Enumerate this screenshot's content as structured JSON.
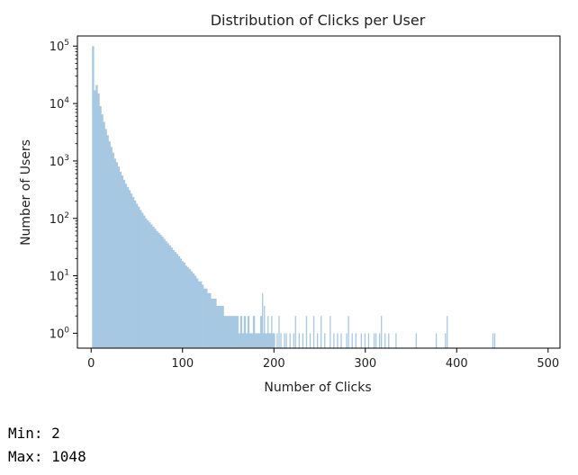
{
  "chart_data": {
    "type": "bar",
    "title": "Distribution of Clicks per User",
    "xlabel": "Number of Clicks",
    "ylabel": "Number of Users",
    "xlim": [
      -15,
      513
    ],
    "ylim": [
      0.55,
      150000
    ],
    "yscale": "log",
    "xticks": [
      0,
      100,
      200,
      300,
      400,
      500
    ],
    "xtick_labels": [
      "0",
      "100",
      "200",
      "300",
      "400",
      "500"
    ],
    "yticks": [
      1,
      10,
      100,
      1000,
      10000,
      100000
    ],
    "ytick_bases": [
      "10",
      "10",
      "10",
      "10",
      "10",
      "10"
    ],
    "ytick_exponents": [
      "0",
      "1",
      "2",
      "3",
      "4",
      "5"
    ],
    "bin_width": 2,
    "bar_color": "#a6c8e2",
    "grid": false,
    "decay_bins": [
      {
        "x": 2,
        "y": 100000
      },
      {
        "x": 4,
        "y": 17000
      },
      {
        "x": 6,
        "y": 21000
      },
      {
        "x": 8,
        "y": 15000
      },
      {
        "x": 10,
        "y": 9000
      },
      {
        "x": 12,
        "y": 6500
      },
      {
        "x": 14,
        "y": 4800
      },
      {
        "x": 16,
        "y": 3600
      },
      {
        "x": 18,
        "y": 2800
      },
      {
        "x": 20,
        "y": 2200
      },
      {
        "x": 22,
        "y": 1750
      },
      {
        "x": 24,
        "y": 1400
      },
      {
        "x": 26,
        "y": 1100
      },
      {
        "x": 28,
        "y": 950
      },
      {
        "x": 30,
        "y": 800
      },
      {
        "x": 32,
        "y": 650
      },
      {
        "x": 34,
        "y": 560
      },
      {
        "x": 36,
        "y": 470
      },
      {
        "x": 38,
        "y": 400
      },
      {
        "x": 40,
        "y": 350
      },
      {
        "x": 42,
        "y": 310
      },
      {
        "x": 44,
        "y": 270
      },
      {
        "x": 46,
        "y": 235
      },
      {
        "x": 48,
        "y": 205
      },
      {
        "x": 50,
        "y": 180
      },
      {
        "x": 52,
        "y": 160
      },
      {
        "x": 54,
        "y": 140
      },
      {
        "x": 56,
        "y": 125
      },
      {
        "x": 58,
        "y": 112
      },
      {
        "x": 60,
        "y": 100
      },
      {
        "x": 62,
        "y": 92
      },
      {
        "x": 64,
        "y": 85
      },
      {
        "x": 66,
        "y": 78
      },
      {
        "x": 68,
        "y": 72
      },
      {
        "x": 70,
        "y": 66
      },
      {
        "x": 72,
        "y": 60
      },
      {
        "x": 74,
        "y": 56
      },
      {
        "x": 76,
        "y": 52
      },
      {
        "x": 78,
        "y": 48
      },
      {
        "x": 80,
        "y": 44
      },
      {
        "x": 82,
        "y": 40
      },
      {
        "x": 84,
        "y": 37
      },
      {
        "x": 86,
        "y": 34
      },
      {
        "x": 88,
        "y": 31
      },
      {
        "x": 90,
        "y": 28
      },
      {
        "x": 92,
        "y": 26
      },
      {
        "x": 94,
        "y": 24
      },
      {
        "x": 96,
        "y": 22
      },
      {
        "x": 98,
        "y": 20
      },
      {
        "x": 100,
        "y": 18
      },
      {
        "x": 102,
        "y": 17
      },
      {
        "x": 104,
        "y": 15
      },
      {
        "x": 106,
        "y": 14
      },
      {
        "x": 108,
        "y": 13
      },
      {
        "x": 110,
        "y": 12
      },
      {
        "x": 112,
        "y": 11
      },
      {
        "x": 114,
        "y": 10
      },
      {
        "x": 116,
        "y": 9
      },
      {
        "x": 118,
        "y": 8
      },
      {
        "x": 120,
        "y": 8
      },
      {
        "x": 122,
        "y": 7
      },
      {
        "x": 124,
        "y": 6
      },
      {
        "x": 126,
        "y": 6
      },
      {
        "x": 128,
        "y": 5
      },
      {
        "x": 130,
        "y": 5
      },
      {
        "x": 132,
        "y": 4
      },
      {
        "x": 134,
        "y": 4
      },
      {
        "x": 136,
        "y": 4
      },
      {
        "x": 138,
        "y": 3
      },
      {
        "x": 140,
        "y": 3
      },
      {
        "x": 142,
        "y": 3
      },
      {
        "x": 144,
        "y": 3
      },
      {
        "x": 146,
        "y": 2
      },
      {
        "x": 148,
        "y": 2
      },
      {
        "x": 150,
        "y": 2
      },
      {
        "x": 152,
        "y": 2
      },
      {
        "x": 154,
        "y": 2
      },
      {
        "x": 156,
        "y": 2
      },
      {
        "x": 158,
        "y": 2
      },
      {
        "x": 160,
        "y": 2
      },
      {
        "x": 162,
        "y": 1
      },
      {
        "x": 164,
        "y": 2
      },
      {
        "x": 166,
        "y": 1
      },
      {
        "x": 168,
        "y": 2
      },
      {
        "x": 170,
        "y": 1
      },
      {
        "x": 172,
        "y": 2
      },
      {
        "x": 174,
        "y": 1
      },
      {
        "x": 176,
        "y": 1
      },
      {
        "x": 178,
        "y": 2
      },
      {
        "x": 180,
        "y": 1
      },
      {
        "x": 182,
        "y": 1
      },
      {
        "x": 184,
        "y": 1
      },
      {
        "x": 186,
        "y": 2
      },
      {
        "x": 188,
        "y": 1
      },
      {
        "x": 190,
        "y": 1
      },
      {
        "x": 192,
        "y": 1
      },
      {
        "x": 194,
        "y": 1
      },
      {
        "x": 196,
        "y": 1
      },
      {
        "x": 198,
        "y": 1
      },
      {
        "x": 200,
        "y": 1
      }
    ],
    "tail_bins": [
      {
        "x": 188,
        "y": 5
      },
      {
        "x": 190,
        "y": 3
      },
      {
        "x": 194,
        "y": 2
      },
      {
        "x": 198,
        "y": 2
      },
      {
        "x": 204,
        "y": 1
      },
      {
        "x": 206,
        "y": 2
      },
      {
        "x": 208,
        "y": 1
      },
      {
        "x": 212,
        "y": 1
      },
      {
        "x": 214,
        "y": 1
      },
      {
        "x": 218,
        "y": 1
      },
      {
        "x": 222,
        "y": 1
      },
      {
        "x": 224,
        "y": 2
      },
      {
        "x": 228,
        "y": 1
      },
      {
        "x": 232,
        "y": 1
      },
      {
        "x": 236,
        "y": 2
      },
      {
        "x": 240,
        "y": 1
      },
      {
        "x": 244,
        "y": 2
      },
      {
        "x": 248,
        "y": 1
      },
      {
        "x": 252,
        "y": 2
      },
      {
        "x": 256,
        "y": 1
      },
      {
        "x": 262,
        "y": 2
      },
      {
        "x": 266,
        "y": 1
      },
      {
        "x": 270,
        "y": 1
      },
      {
        "x": 274,
        "y": 1
      },
      {
        "x": 280,
        "y": 1
      },
      {
        "x": 282,
        "y": 2
      },
      {
        "x": 286,
        "y": 1
      },
      {
        "x": 290,
        "y": 1
      },
      {
        "x": 296,
        "y": 1
      },
      {
        "x": 300,
        "y": 1
      },
      {
        "x": 304,
        "y": 1
      },
      {
        "x": 310,
        "y": 1
      },
      {
        "x": 312,
        "y": 1
      },
      {
        "x": 316,
        "y": 1
      },
      {
        "x": 318,
        "y": 2
      },
      {
        "x": 322,
        "y": 1
      },
      {
        "x": 326,
        "y": 1
      },
      {
        "x": 334,
        "y": 1
      },
      {
        "x": 356,
        "y": 1
      },
      {
        "x": 378,
        "y": 1
      },
      {
        "x": 388,
        "y": 1
      },
      {
        "x": 390,
        "y": 2
      },
      {
        "x": 440,
        "y": 1
      },
      {
        "x": 442,
        "y": 1
      }
    ]
  },
  "output": {
    "min_line": "Min: 2",
    "max_line": "Max: 1048"
  }
}
